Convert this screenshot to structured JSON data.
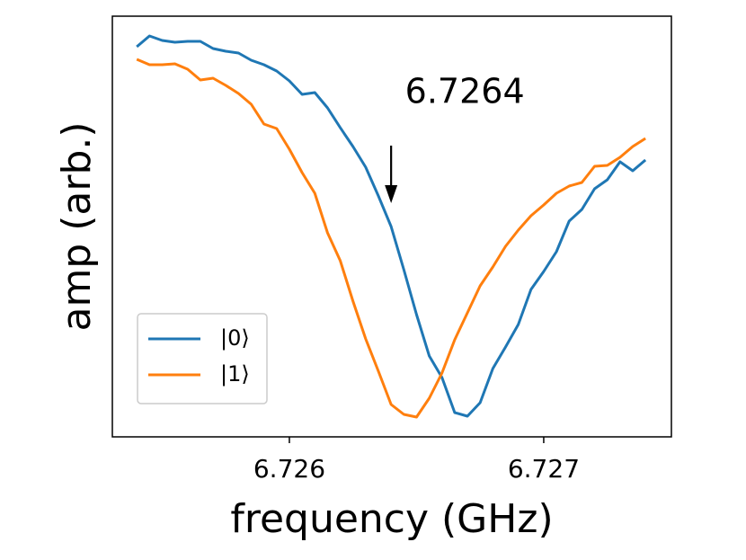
{
  "chart_data": {
    "type": "line",
    "xlabel": "frequency (GHz)",
    "ylabel": "amp (arb.)",
    "x": [
      6.7254,
      6.72545,
      6.7255,
      6.72555,
      6.7256,
      6.72565,
      6.7257,
      6.72575,
      6.7258,
      6.72585,
      6.7259,
      6.72595,
      6.726,
      6.72605,
      6.7261,
      6.72615,
      6.7262,
      6.72625,
      6.7263,
      6.72635,
      6.7264,
      6.72645,
      6.7265,
      6.72655,
      6.7266,
      6.72665,
      6.7267,
      6.72675,
      6.7268,
      6.72685,
      6.7269,
      6.72695,
      6.727,
      6.72705,
      6.7271,
      6.72715,
      6.7272,
      6.72725,
      6.7273,
      6.72735,
      6.7274
    ],
    "series": [
      {
        "name": "|0⟩",
        "color": "#1f77b4",
        "values": [
          434,
          446,
          441,
          439,
          440,
          440,
          432,
          429,
          427,
          419,
          414,
          407,
          396,
          381,
          383,
          366,
          344,
          323,
          300,
          268,
          234,
          186,
          136,
          90,
          66,
          27,
          23,
          38,
          76,
          100,
          125,
          164,
          184,
          206,
          240,
          253,
          276,
          286,
          306,
          296,
          308
        ]
      },
      {
        "name": "|1⟩",
        "color": "#ff7f0e",
        "values": [
          420,
          414,
          414,
          415,
          409,
          397,
          399,
          391,
          382,
          370,
          348,
          343,
          320,
          294,
          271,
          227,
          196,
          151,
          109,
          73,
          36,
          25,
          22,
          43,
          71,
          108,
          138,
          168,
          189,
          212,
          230,
          246,
          258,
          271,
          279,
          283,
          301,
          302,
          311,
          323,
          332
        ]
      }
    ],
    "xlim": [
      6.725304,
      6.727502
    ],
    "ylim": [
      0,
      468
    ],
    "xticks": [
      6.726,
      6.727
    ],
    "annotations": [
      {
        "text": "6.7264",
        "x": 6.7264
      }
    ],
    "legend": "lower left",
    "grid": false
  }
}
